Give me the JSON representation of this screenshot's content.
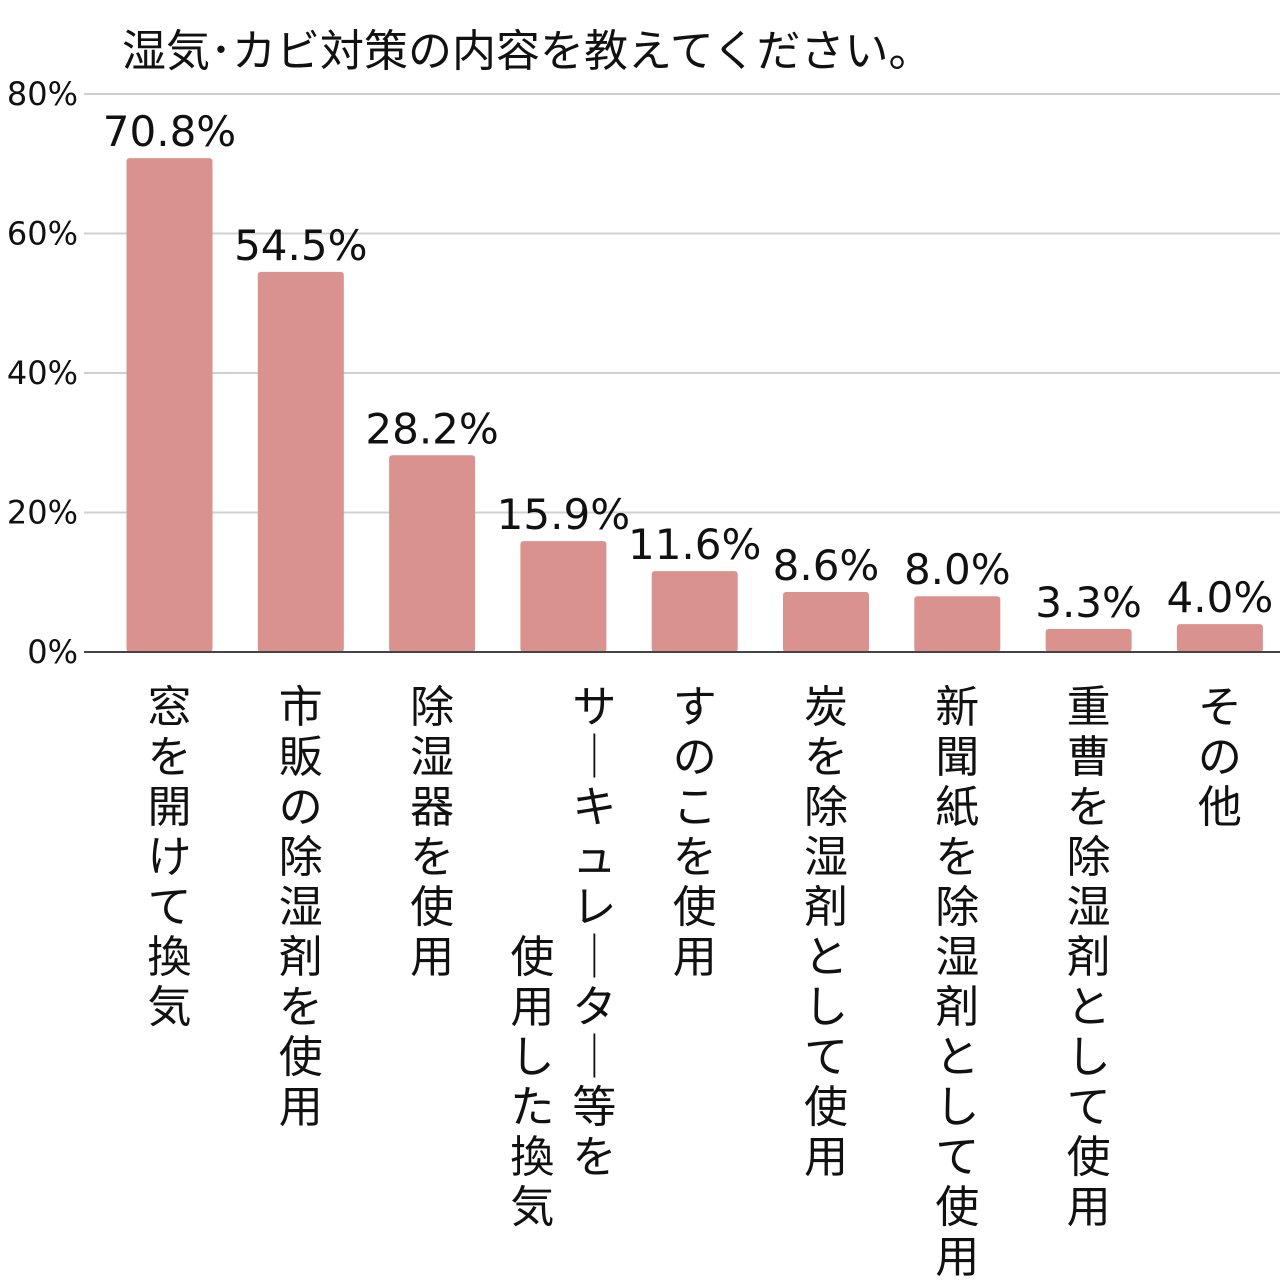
{
  "chart_data": {
    "type": "bar",
    "title": "湿気･カビ対策の内容を教えてください。",
    "xlabel": "",
    "ylabel": "",
    "ylim": [
      0,
      80
    ],
    "yticks": [
      0,
      20,
      40,
      60,
      80
    ],
    "ytick_labels": [
      "0%",
      "20%",
      "40%",
      "60%",
      "80%"
    ],
    "grid": true,
    "legend": "none",
    "categories": [
      "窓を開けて換気",
      "市販の除湿剤を使用",
      "除湿器を使用",
      "サーキュレーター等を使用した換気",
      "すのこを使用",
      "炭を除湿剤として使用",
      "新聞紙を除湿剤として使用",
      "重曹を除湿剤として使用",
      "その他"
    ],
    "category_label_columns": [
      [
        "窓を開けて換気"
      ],
      [
        "市販の除湿剤を使用"
      ],
      [
        "除湿器を使用"
      ],
      [
        "サーキュレーター等を",
        "使用した換気"
      ],
      [
        "すのこを使用"
      ],
      [
        "炭を除湿剤として使用"
      ],
      [
        "新聞紙を除湿剤として使用"
      ],
      [
        "重曹を除湿剤として使用"
      ],
      [
        "その他"
      ]
    ],
    "values": [
      70.8,
      54.5,
      28.2,
      15.9,
      11.6,
      8.6,
      8.0,
      3.3,
      4.0
    ],
    "value_labels": [
      "70.8%",
      "54.5%",
      "28.2%",
      "15.9%",
      "11.6%",
      "8.6%",
      "8.0%",
      "3.3%",
      "4.0%"
    ],
    "colors": {
      "bar": "#d9928e",
      "grid": "#d0d0d0",
      "axis": "#444444",
      "text": "#111111"
    }
  }
}
